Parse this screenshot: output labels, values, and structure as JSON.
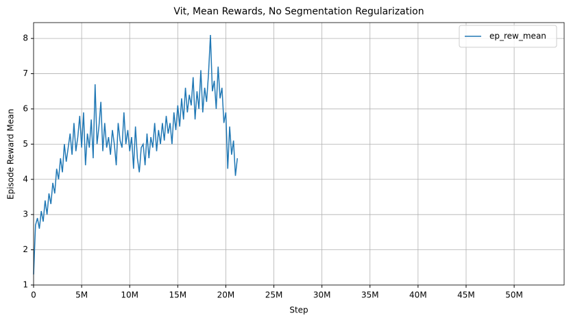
{
  "chart_data": {
    "type": "line",
    "title": "Vit, Mean Rewards, No Segmentation Regularization",
    "x_label": "Step",
    "y_label": "Episode Reward Mean",
    "x": [
      0,
      200000,
      400000,
      600000,
      800000,
      1000000,
      1200000,
      1400000,
      1600000,
      1800000,
      2000000,
      2200000,
      2400000,
      2600000,
      2800000,
      3000000,
      3200000,
      3400000,
      3600000,
      3800000,
      4000000,
      4200000,
      4400000,
      4600000,
      4800000,
      5000000,
      5200000,
      5400000,
      5600000,
      5800000,
      6000000,
      6200000,
      6400000,
      6600000,
      6800000,
      7000000,
      7200000,
      7400000,
      7600000,
      7800000,
      8000000,
      8200000,
      8400000,
      8600000,
      8800000,
      9000000,
      9200000,
      9400000,
      9600000,
      9800000,
      10000000,
      10200000,
      10400000,
      10600000,
      10800000,
      11000000,
      11200000,
      11400000,
      11600000,
      11800000,
      12000000,
      12200000,
      12400000,
      12600000,
      12800000,
      13000000,
      13200000,
      13400000,
      13600000,
      13800000,
      14000000,
      14200000,
      14400000,
      14600000,
      14800000,
      15000000,
      15200000,
      15400000,
      15600000,
      15800000,
      16000000,
      16200000,
      16400000,
      16600000,
      16800000,
      17000000,
      17200000,
      17400000,
      17600000,
      17800000,
      18000000,
      18200000,
      18400000,
      18600000,
      18800000,
      19000000,
      19200000,
      19400000,
      19600000,
      19800000,
      20000000,
      20200000,
      20400000,
      20600000,
      20800000,
      21000000,
      21200000
    ],
    "series": [
      {
        "name": "ep_rew_mean",
        "color": "#1f77b4",
        "values": [
          1.3,
          2.7,
          2.9,
          2.6,
          3.1,
          2.8,
          3.4,
          3.0,
          3.6,
          3.3,
          3.9,
          3.6,
          4.3,
          4.0,
          4.6,
          4.2,
          5.0,
          4.5,
          4.9,
          5.3,
          4.7,
          5.6,
          4.8,
          5.2,
          5.8,
          4.9,
          5.9,
          4.4,
          5.3,
          4.9,
          5.7,
          4.6,
          6.7,
          5.0,
          5.5,
          6.2,
          4.8,
          5.6,
          4.9,
          5.2,
          4.7,
          5.4,
          5.0,
          4.4,
          5.6,
          5.1,
          4.9,
          5.9,
          5.0,
          5.4,
          4.8,
          5.2,
          4.3,
          5.5,
          4.6,
          4.2,
          4.9,
          5.0,
          4.4,
          5.3,
          4.6,
          5.2,
          4.9,
          5.6,
          4.8,
          5.4,
          5.0,
          5.6,
          5.1,
          5.8,
          5.3,
          5.6,
          5.0,
          5.9,
          5.4,
          6.1,
          5.5,
          6.3,
          5.7,
          6.6,
          5.9,
          6.4,
          6.1,
          6.9,
          5.7,
          6.5,
          6.0,
          7.1,
          5.9,
          6.6,
          6.2,
          7.0,
          8.1,
          6.5,
          6.8,
          6.0,
          7.2,
          6.3,
          6.6,
          5.6,
          5.9,
          4.3,
          5.5,
          4.7,
          5.1,
          4.1,
          4.6
        ]
      }
    ],
    "xlim": [
      0,
      55200000
    ],
    "ylim": [
      1,
      8.45
    ],
    "xticks": [
      0,
      {
        "value": 5000000,
        "label": "5M"
      },
      {
        "value": 10000000,
        "label": "10M"
      },
      {
        "value": 15000000,
        "label": "15M"
      },
      {
        "value": 20000000,
        "label": "20M"
      },
      {
        "value": 25000000,
        "label": "25M"
      },
      {
        "value": 30000000,
        "label": "30M"
      },
      {
        "value": 35000000,
        "label": "35M"
      },
      {
        "value": 40000000,
        "label": "40M"
      },
      {
        "value": 45000000,
        "label": "45M"
      },
      {
        "value": 50000000,
        "label": "50M"
      }
    ],
    "yticks": [
      1,
      2,
      3,
      4,
      5,
      6,
      7,
      8
    ],
    "grid": true,
    "legend": "upper right"
  }
}
